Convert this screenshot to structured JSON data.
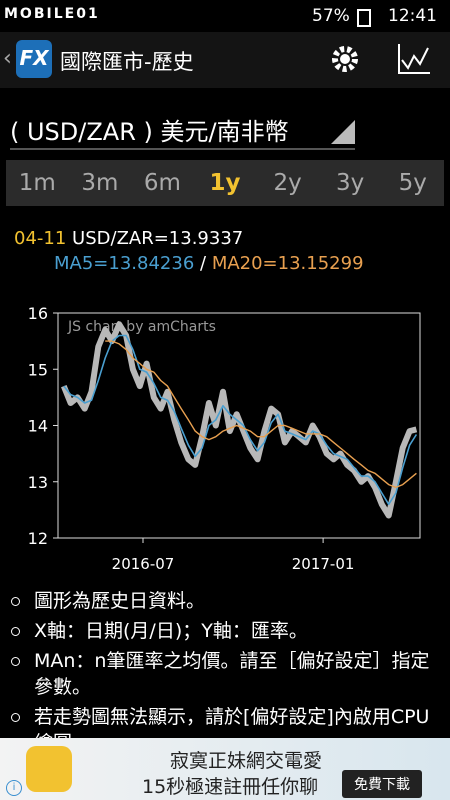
{
  "status_bar": {
    "carrier": "MOBILE01",
    "battery": "57%",
    "time": "12:41"
  },
  "app_bar": {
    "title": "國際匯市-歷史"
  },
  "selector": {
    "label": "( USD/ZAR ) 美元/南非幣"
  },
  "range_tabs": {
    "items": [
      "1m",
      "3m",
      "6m",
      "1y",
      "2y",
      "3y",
      "5y"
    ],
    "selected": 3
  },
  "info": {
    "date": "04-11",
    "quote": "USD/ZAR=13.9337",
    "ma5": "MA5=13.84236",
    "separator": "/",
    "ma20": "MA20=13.15299"
  },
  "chart_data": {
    "type": "line",
    "watermark": "JS chart by amCharts",
    "x": [
      2016.28,
      2016.299,
      2016.318,
      2016.338,
      2016.357,
      2016.376,
      2016.395,
      2016.414,
      2016.434,
      2016.453,
      2016.472,
      2016.491,
      2016.51,
      2016.53,
      2016.549,
      2016.568,
      2016.587,
      2016.606,
      2016.626,
      2016.645,
      2016.664,
      2016.683,
      2016.702,
      2016.722,
      2016.741,
      2016.76,
      2016.779,
      2016.798,
      2016.818,
      2016.837,
      2016.856,
      2016.875,
      2016.894,
      2016.914,
      2016.933,
      2016.952,
      2016.971,
      2016.99,
      2017.01,
      2017.029,
      2017.048,
      2017.067,
      2017.086,
      2017.106,
      2017.125,
      2017.144,
      2017.163,
      2017.182,
      2017.202,
      2017.221,
      2017.24,
      2017.259
    ],
    "series": [
      {
        "color": "#b8b8b8",
        "values": [
          14.7,
          14.4,
          14.5,
          14.3,
          14.6,
          15.4,
          15.7,
          15.5,
          15.8,
          15.6,
          15.0,
          14.7,
          15.1,
          14.5,
          14.3,
          14.6,
          14.1,
          13.7,
          13.4,
          13.3,
          13.8,
          14.4,
          14.0,
          14.6,
          13.9,
          14.2,
          13.9,
          13.6,
          13.4,
          13.9,
          14.3,
          14.2,
          13.7,
          13.9,
          13.8,
          13.7,
          14.0,
          13.8,
          13.5,
          13.4,
          13.5,
          13.3,
          13.2,
          13.0,
          13.1,
          12.9,
          12.6,
          12.4,
          13.0,
          13.6,
          13.9,
          13.93
        ]
      },
      {
        "color": "#4a9fd0",
        "values": [
          14.7,
          14.55,
          14.5,
          14.4,
          14.45,
          14.8,
          15.2,
          15.5,
          15.6,
          15.6,
          15.35,
          15.0,
          14.95,
          14.75,
          14.5,
          14.45,
          14.25,
          13.95,
          13.65,
          13.45,
          13.6,
          14.0,
          14.1,
          14.35,
          14.2,
          14.1,
          14.0,
          13.75,
          13.55,
          13.7,
          14.05,
          14.2,
          13.9,
          13.85,
          13.8,
          13.75,
          13.9,
          13.85,
          13.65,
          13.5,
          13.45,
          13.4,
          13.25,
          13.1,
          13.1,
          13.0,
          12.8,
          12.6,
          12.8,
          13.25,
          13.65,
          13.84
        ]
      },
      {
        "color": "#e8a050",
        "values": [
          null,
          null,
          null,
          null,
          null,
          null,
          15.5,
          15.5,
          15.45,
          15.35,
          15.2,
          15.1,
          15.0,
          14.95,
          14.8,
          14.7,
          14.5,
          14.3,
          14.1,
          13.9,
          13.8,
          13.75,
          13.8,
          13.9,
          13.95,
          14.0,
          13.95,
          13.9,
          13.8,
          13.8,
          13.9,
          14.0,
          14.0,
          13.95,
          13.9,
          13.85,
          13.85,
          13.85,
          13.8,
          13.7,
          13.6,
          13.5,
          13.4,
          13.3,
          13.2,
          13.15,
          13.05,
          12.95,
          12.9,
          12.95,
          13.05,
          13.15
        ]
      }
    ],
    "xlim": [
      2016.264,
      2017.269
    ],
    "xticks": [
      {
        "value": 2016.5,
        "label": "2016-07"
      },
      {
        "value": 2017.0,
        "label": "2017-01"
      }
    ],
    "ylim": [
      12,
      16
    ],
    "yticks": [
      12,
      13,
      14,
      15,
      16
    ]
  },
  "notes": [
    "圖形為歷史日資料。",
    "X軸：日期(月/日)；Y軸：匯率。",
    "MAn：n筆匯率之均價。請至［偏好設定］指定參數。",
    "若走勢圖無法顯示，請於[偏好設定]內啟用CPU繪圖。"
  ],
  "ad": {
    "line1": "寂寞正妹網交電愛",
    "line2": "15秒極速註冊任你聊",
    "button": "免費下載"
  }
}
